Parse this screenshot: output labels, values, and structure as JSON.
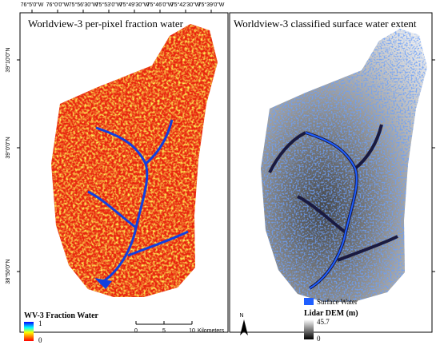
{
  "longitude_labels": [
    "76°5'0\"W",
    "76°0'0\"W",
    "75°56'30\"W",
    "75°53'0\"W",
    "75°49'30\"W",
    "75°46'0\"W",
    "75°42'30\"W",
    "75°39'0\"W"
  ],
  "latitude_labels": [
    "39°10'0\"N",
    "39°0'0\"N",
    "38°50'0\"N"
  ],
  "left_panel": {
    "title": "Worldview-3 per-pixel fraction water",
    "legend": {
      "title": "WV-3 Fraction Water",
      "max": 1,
      "min": 0
    },
    "scale_bar": {
      "ticks": [
        0,
        5,
        10
      ],
      "unit": "Kilometers"
    }
  },
  "right_panel": {
    "title": "Worldview-3 classified surface water extent",
    "north": "N",
    "legend": {
      "water": "Surface Water",
      "dem_title": "Lidar DEM (m)",
      "max": 45.7,
      "min": 0
    }
  }
}
